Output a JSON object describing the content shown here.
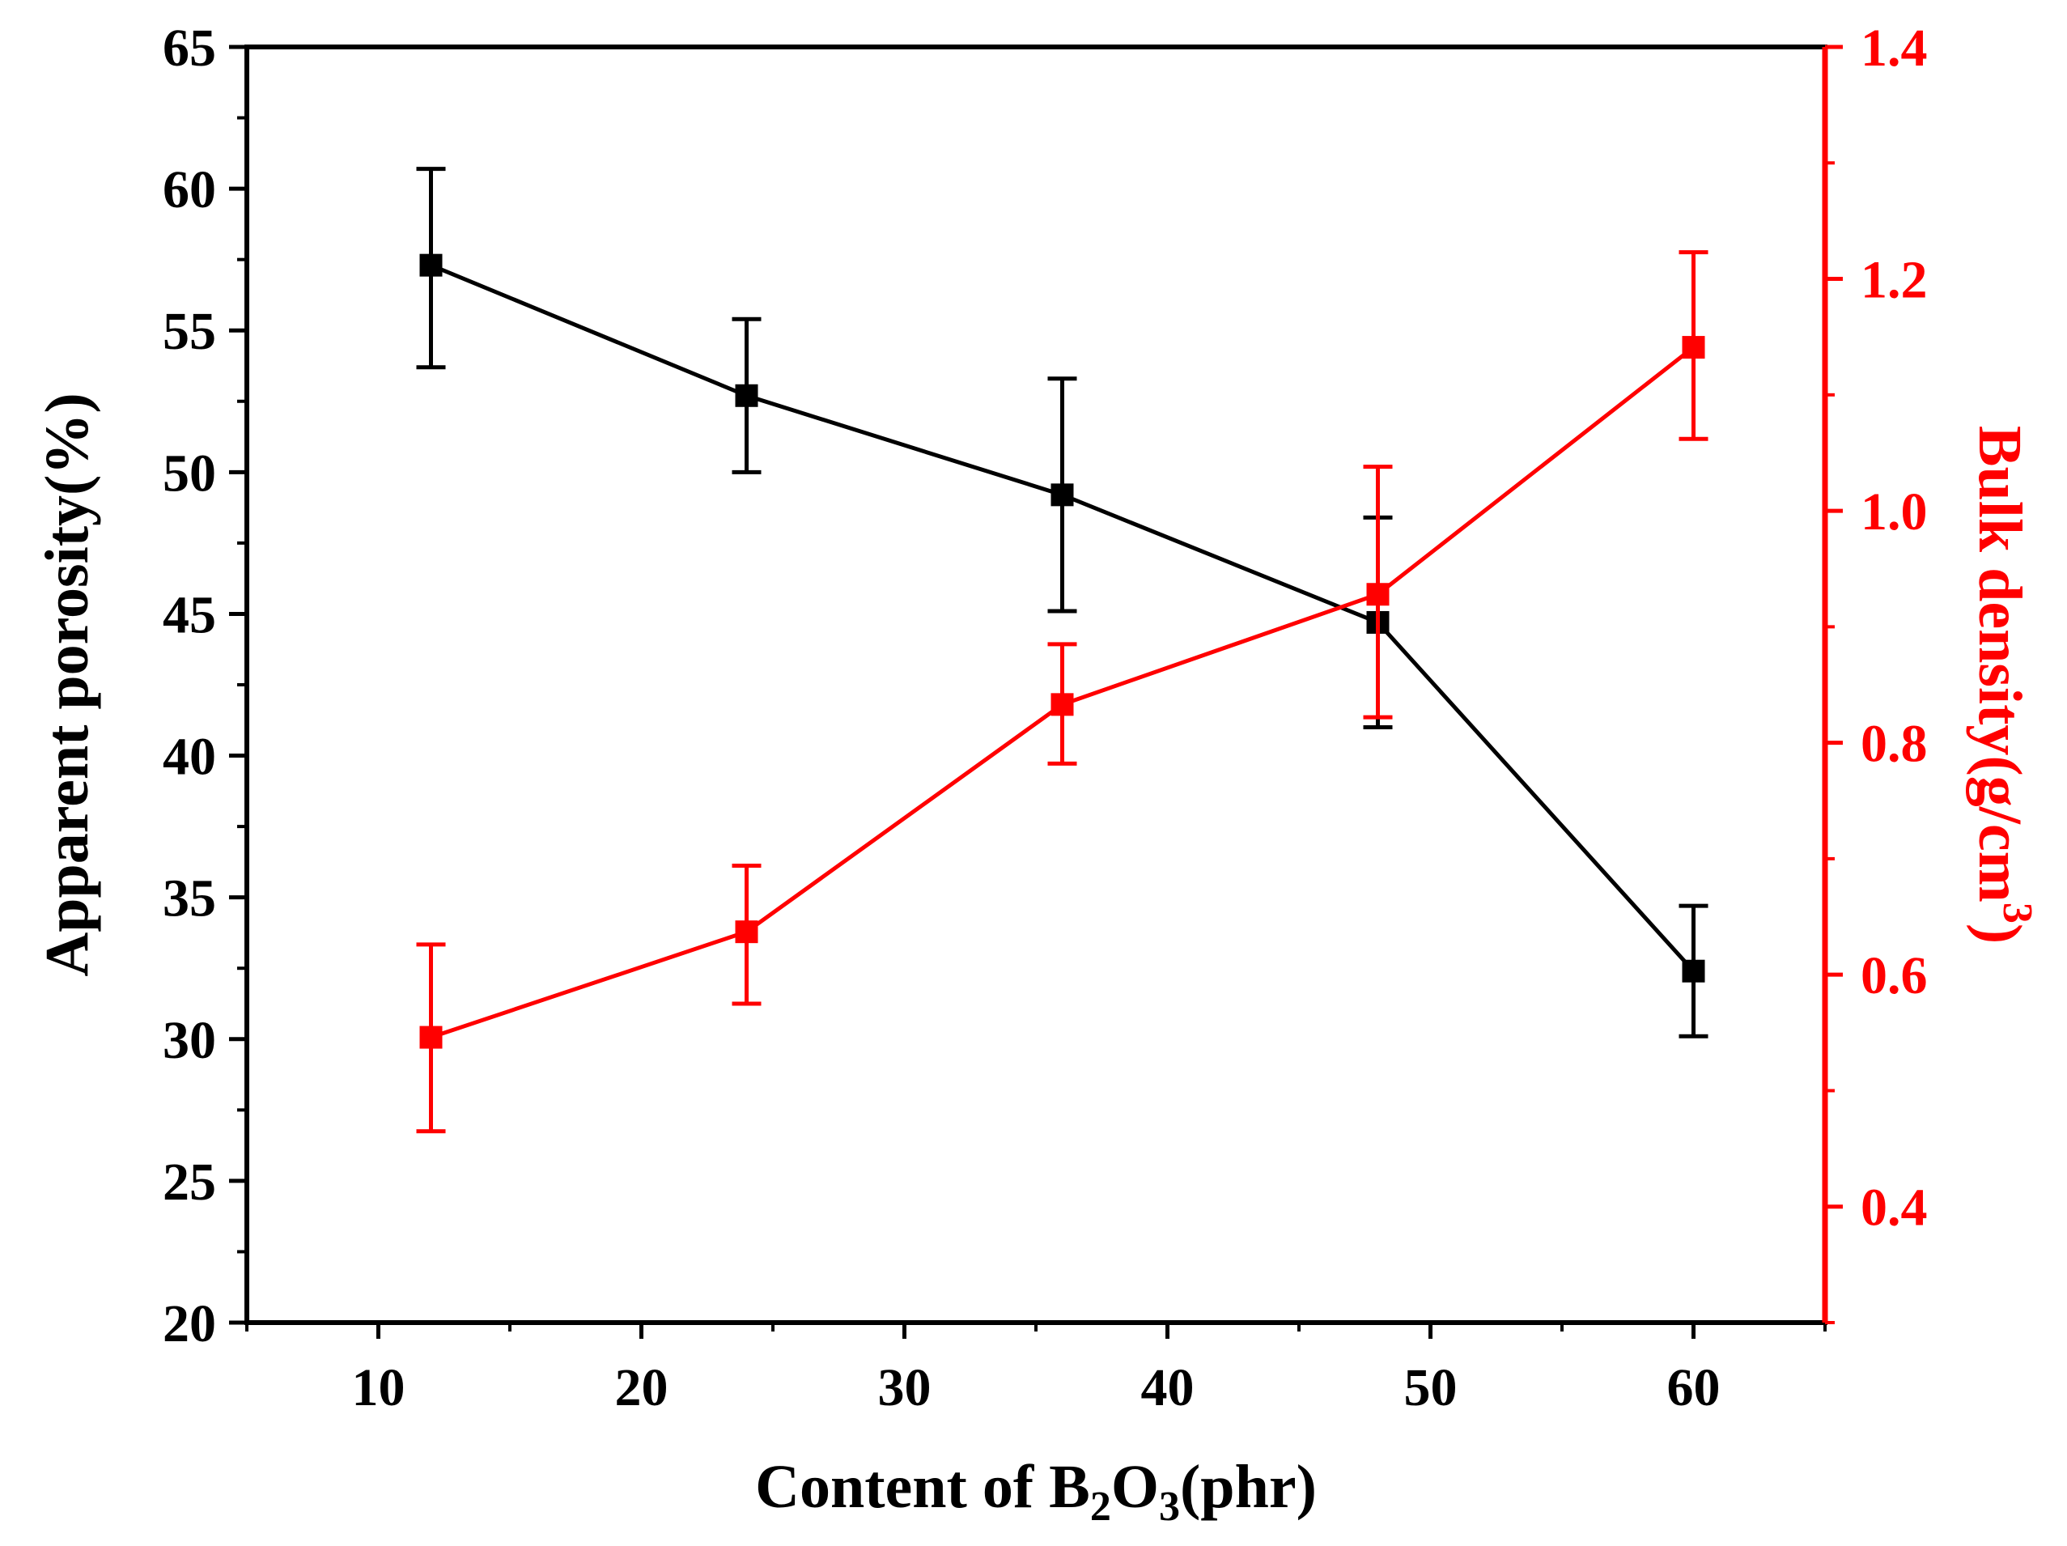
{
  "chart_data": {
    "type": "line",
    "title": "",
    "xlabel": "Content of B",
    "xlabel_sub1": "2",
    "xlabel_mid": "O",
    "xlabel_sub2": "3",
    "xlabel_tail": "(phr)",
    "ylabel_left": "Apparent porosity(%)",
    "ylabel_right": "Bulk density(g/cm",
    "ylabel_right_sup": "3",
    "ylabel_right_tail": ")",
    "xlim": [
      5,
      65
    ],
    "ylim_left": [
      20,
      65
    ],
    "ylim_right": [
      0.3,
      1.4
    ],
    "x_ticks": [
      10,
      20,
      30,
      40,
      50,
      60
    ],
    "y_left_ticks": [
      20,
      25,
      30,
      35,
      40,
      45,
      50,
      55,
      60,
      65
    ],
    "y_right_ticks": [
      0.4,
      0.6,
      0.8,
      1.0,
      1.2,
      1.4
    ],
    "x_tick_labels": [
      "10",
      "20",
      "30",
      "40",
      "50",
      "60"
    ],
    "y_left_tick_labels": [
      "20",
      "25",
      "30",
      "35",
      "40",
      "45",
      "50",
      "55",
      "60",
      "65"
    ],
    "y_right_tick_labels": [
      "0.4",
      "0.6",
      "0.8",
      "1.0",
      "1.2",
      "1.4"
    ],
    "x": [
      12,
      24,
      36,
      48,
      60
    ],
    "series": [
      {
        "name": "Apparent porosity",
        "axis": "left",
        "color": "#000000",
        "values": [
          57.3,
          52.7,
          49.2,
          44.7,
          32.4
        ],
        "err_low": [
          53.7,
          50.0,
          45.1,
          41.0,
          30.1
        ],
        "err_high": [
          60.7,
          55.4,
          53.3,
          48.4,
          34.7
        ]
      },
      {
        "name": "Bulk density",
        "axis": "right",
        "color": "#ff0000",
        "values": [
          0.546,
          0.637,
          0.833,
          0.928,
          1.141
        ],
        "err_low": [
          0.465,
          0.575,
          0.782,
          0.822,
          1.062
        ],
        "err_high": [
          0.626,
          0.694,
          0.885,
          1.038,
          1.223
        ]
      }
    ]
  }
}
